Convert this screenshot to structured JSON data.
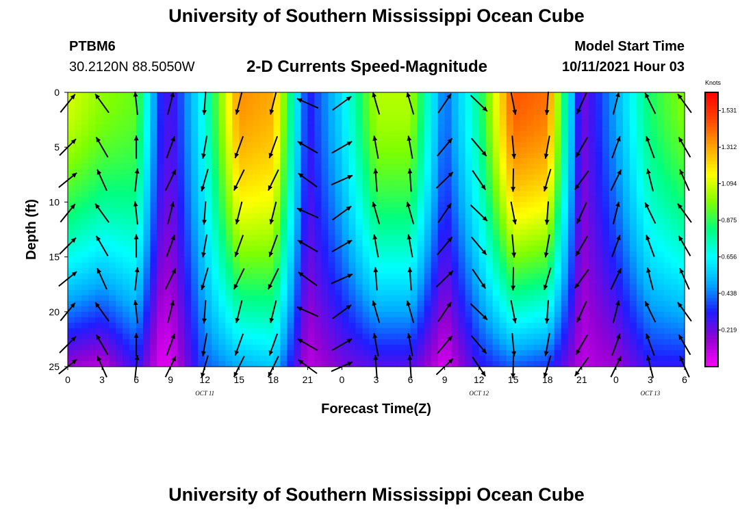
{
  "header": {
    "title_top": "University of Southern Mississippi Ocean Cube",
    "title_bottom": "University of Southern Mississippi Ocean Cube",
    "station_id": "PTBM6",
    "station_coords": "30.2120N  88.5050W",
    "plot_title": "2-D Currents Speed-Magnitude",
    "model_start_label": "Model Start Time",
    "model_start_value": "10/11/2021 Hour 03"
  },
  "chart_data": {
    "type": "heatmap",
    "title": "2-D Currents Speed-Magnitude",
    "xlabel": "Forecast Time(Z)",
    "ylabel": "Depth (ft)",
    "x_tick_labels": [
      "0",
      "3",
      "6",
      "9",
      "12",
      "15",
      "18",
      "21",
      "0",
      "3",
      "6",
      "9",
      "12",
      "15",
      "18",
      "21",
      "0",
      "3",
      "6"
    ],
    "x_day_labels": [
      {
        "label": "OCT 11",
        "tick_index": 4
      },
      {
        "label": "OCT 12",
        "tick_index": 12
      },
      {
        "label": "OCT 13",
        "tick_index": 17
      }
    ],
    "x_range_hours": [
      0,
      54
    ],
    "y_tick_labels": [
      "0",
      "5",
      "10",
      "15",
      "20",
      "25"
    ],
    "ylim": [
      25,
      0
    ],
    "colorbar": {
      "unit": "Knots",
      "ticks": [
        "1.531",
        "1.312",
        "1.094",
        "0.875",
        "0.656",
        "0.438",
        "0.219"
      ],
      "range": [
        0,
        1.64
      ],
      "colormap": [
        "#ff00ff",
        "#9400d3",
        "#1e1eff",
        "#00aaff",
        "#00ffff",
        "#00ff7f",
        "#7fff00",
        "#ffff00",
        "#ffa500",
        "#ff4500",
        "#ff0000"
      ]
    },
    "speed_profile_knots": [
      {
        "hour": 0,
        "surface": 1.1,
        "bottom": 0.15
      },
      {
        "hour": 3,
        "surface": 1.0,
        "bottom": 0.1
      },
      {
        "hour": 6,
        "surface": 0.95,
        "bottom": 0.3
      },
      {
        "hour": 8,
        "surface": 0.35,
        "bottom": 0.05
      },
      {
        "hour": 9,
        "surface": 0.25,
        "bottom": 0.05
      },
      {
        "hour": 12,
        "surface": 0.7,
        "bottom": 0.4
      },
      {
        "hour": 15,
        "surface": 1.35,
        "bottom": 0.5
      },
      {
        "hour": 18,
        "surface": 1.3,
        "bottom": 0.55
      },
      {
        "hour": 21,
        "surface": 0.3,
        "bottom": 0.1
      },
      {
        "hour": 24,
        "surface": 0.6,
        "bottom": 0.2
      },
      {
        "hour": 27,
        "surface": 1.05,
        "bottom": 0.25
      },
      {
        "hour": 30,
        "surface": 1.05,
        "bottom": 0.25
      },
      {
        "hour": 33,
        "surface": 0.4,
        "bottom": 0.05
      },
      {
        "hour": 36,
        "surface": 0.8,
        "bottom": 0.3
      },
      {
        "hour": 39,
        "surface": 1.45,
        "bottom": 0.4
      },
      {
        "hour": 42,
        "surface": 1.4,
        "bottom": 0.35
      },
      {
        "hour": 45,
        "surface": 0.2,
        "bottom": 0.1
      },
      {
        "hour": 48,
        "surface": 0.5,
        "bottom": 0.15
      },
      {
        "hour": 51,
        "surface": 0.85,
        "bottom": 0.3
      },
      {
        "hour": 54,
        "surface": 1.0,
        "bottom": 0.3
      }
    ],
    "vector_depths_ft": [
      1,
      5,
      8,
      11,
      14,
      17,
      20,
      23,
      25
    ],
    "vector_hours": [
      0,
      3,
      6,
      9,
      12,
      15,
      18,
      21,
      24,
      27,
      30,
      33,
      36,
      39,
      42,
      45,
      48,
      51,
      54
    ],
    "vector_direction_deg_by_hour": [
      {
        "hour": 0,
        "deg": 45
      },
      {
        "hour": 3,
        "deg": 330
      },
      {
        "hour": 6,
        "deg": 0
      },
      {
        "hour": 9,
        "deg": 20
      },
      {
        "hour": 12,
        "deg": 190
      },
      {
        "hour": 15,
        "deg": 200
      },
      {
        "hour": 18,
        "deg": 200
      },
      {
        "hour": 21,
        "deg": 300
      },
      {
        "hour": 24,
        "deg": 60
      },
      {
        "hour": 27,
        "deg": 350
      },
      {
        "hour": 30,
        "deg": 350
      },
      {
        "hour": 33,
        "deg": 40
      },
      {
        "hour": 36,
        "deg": 140
      },
      {
        "hour": 39,
        "deg": 175
      },
      {
        "hour": 42,
        "deg": 190
      },
      {
        "hour": 45,
        "deg": 210
      },
      {
        "hour": 48,
        "deg": 20
      },
      {
        "hour": 51,
        "deg": 340
      },
      {
        "hour": 54,
        "deg": 330
      }
    ]
  }
}
